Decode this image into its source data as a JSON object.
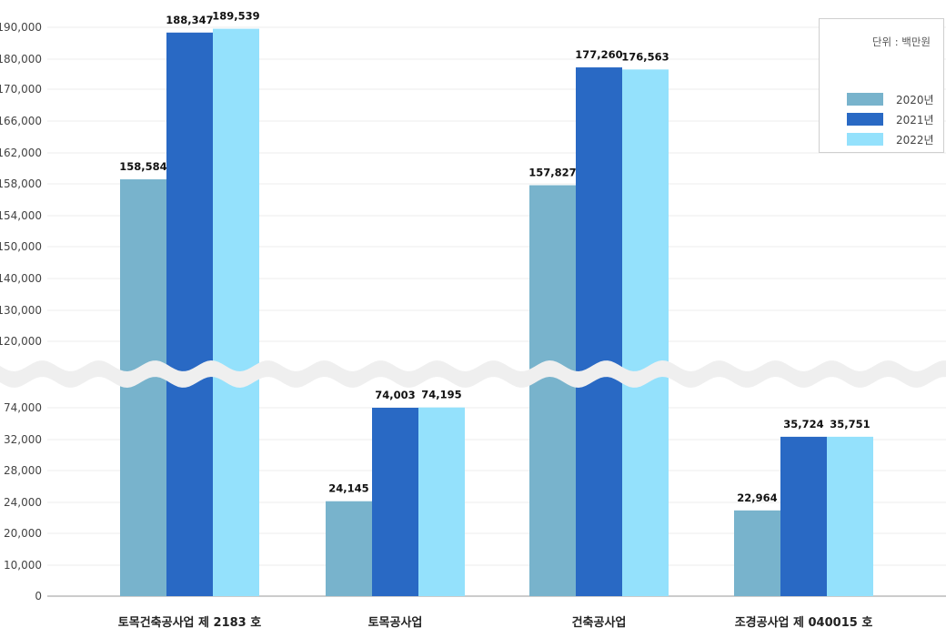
{
  "chart_data": {
    "type": "bar",
    "categories": [
      "토목건축공사업 제 2183 호",
      "토목공사업",
      "건축공사업",
      "조경공사업 제 040015 호"
    ],
    "series": [
      {
        "name": "2020년",
        "color": "#78b3cc",
        "values": [
          158584,
          24145,
          157827,
          22964
        ]
      },
      {
        "name": "2021년",
        "color": "#2969c4",
        "values": [
          188347,
          74003,
          177260,
          35724
        ]
      },
      {
        "name": "2022년",
        "color": "#94e1fc",
        "values": [
          189539,
          74195,
          176563,
          35751
        ]
      }
    ],
    "value_labels": [
      [
        "158,584",
        "24,145",
        "157,827",
        "22,964"
      ],
      [
        "188,347",
        "74,003",
        "177,260",
        "35,724"
      ],
      [
        "189,539",
        "74,195",
        "176,563",
        "35,751"
      ]
    ],
    "y_ticks": [
      "0",
      "10,000",
      "20,000",
      "24,000",
      "28,000",
      "32,000",
      "74,000",
      "120,000",
      "130,000",
      "140,000",
      "150,000",
      "154,000",
      "158,000",
      "162,000",
      "166,000",
      "170,000",
      "180,000",
      "190,000"
    ],
    "axis_break": true,
    "unit_label": "단위 : 백만원",
    "legend_position": "top-right",
    "grid": true
  }
}
